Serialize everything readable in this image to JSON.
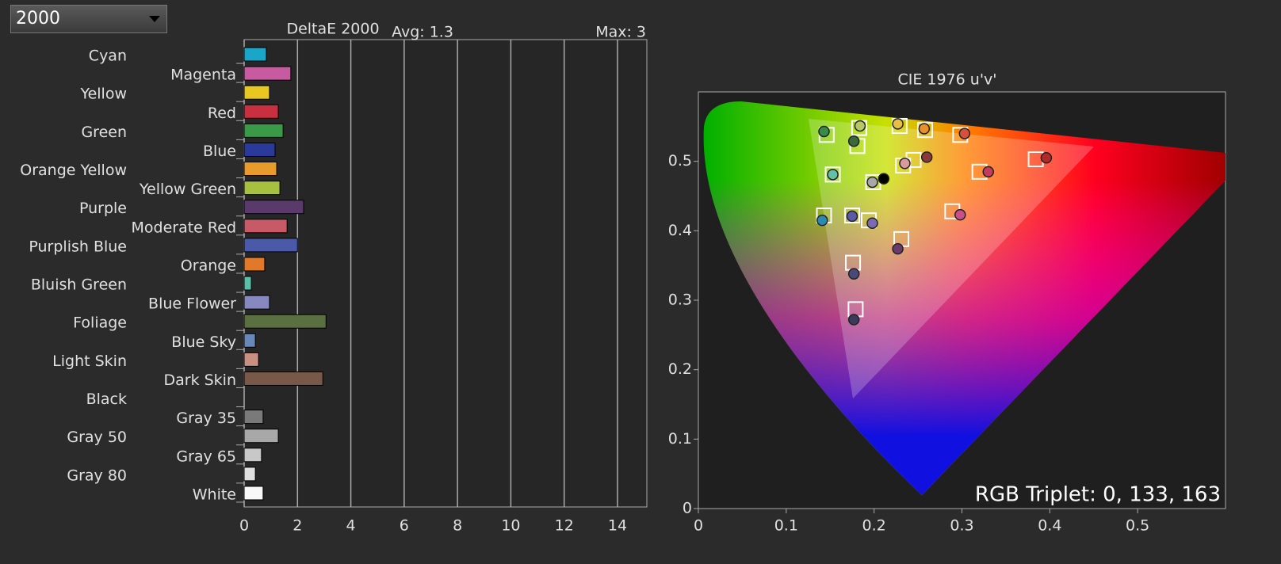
{
  "selector": {
    "value": "2000"
  },
  "chart_data": [
    {
      "type": "bar",
      "orientation": "horizontal",
      "title": "DeltaE 2000",
      "annotations": [
        "Avg: 1.3",
        "Max: 3"
      ],
      "categories": [
        "Cyan",
        "Magenta",
        "Yellow",
        "Red",
        "Green",
        "Blue",
        "Orange Yellow",
        "Yellow Green",
        "Purple",
        "Moderate Red",
        "Purplish Blue",
        "Orange",
        "Bluish Green",
        "Blue Flower",
        "Foliage",
        "Blue Sky",
        "Light Skin",
        "Dark Skin",
        "Black",
        "Gray 35",
        "Gray 50",
        "Gray 65",
        "Gray 80",
        "White"
      ],
      "values": [
        0.83,
        1.75,
        0.95,
        1.28,
        1.46,
        1.16,
        1.22,
        1.34,
        2.23,
        1.61,
        2.0,
        0.77,
        0.27,
        0.95,
        3.07,
        0.42,
        0.54,
        2.95,
        0,
        0.71,
        1.28,
        0.65,
        0.42,
        0.71
      ],
      "colors": [
        "#1aa6c8",
        "#c85aa0",
        "#e8c820",
        "#c83040",
        "#3a9a48",
        "#2a3a9a",
        "#e89a2a",
        "#a8c040",
        "#5a3a6a",
        "#c85a68",
        "#4a5aa8",
        "#e07a2a",
        "#5ac0a8",
        "#8888c0",
        "#5a7040",
        "#6888b8",
        "#c89080",
        "#785848",
        "#202020",
        "#7a7a7a",
        "#a8a8a8",
        "#c8c8c8",
        "#e0e0e0",
        "#f8f8f8"
      ],
      "xlim": [
        0,
        15.1
      ],
      "xticks": [
        0,
        2,
        4,
        6,
        8,
        10,
        12,
        14
      ],
      "grid": true
    },
    {
      "type": "scatter",
      "title": "CIE 1976 u'v'",
      "annotations": [
        "RGB Triplet: 0, 133, 163"
      ],
      "xlim": [
        0,
        0.6
      ],
      "ylim": [
        0,
        0.6
      ],
      "xticks": [
        0,
        0.1,
        0.2,
        0.3,
        0.4,
        0.5
      ],
      "yticks": [
        0,
        0.1,
        0.2,
        0.3,
        0.4,
        0.5
      ],
      "series": [
        {
          "marker": "square",
          "color": "#ffffff",
          "x": [
            0.146,
            0.183,
            0.229,
            0.258,
            0.298,
            0.181,
            0.245,
            0.233,
            0.384,
            0.32,
            0.153,
            0.199,
            0.143,
            0.175,
            0.194,
            0.289,
            0.231,
            0.176,
            0.179
          ],
          "y": [
            0.538,
            0.548,
            0.551,
            0.545,
            0.538,
            0.522,
            0.502,
            0.494,
            0.503,
            0.485,
            0.481,
            0.47,
            0.422,
            0.422,
            0.415,
            0.428,
            0.388,
            0.354,
            0.287
          ]
        },
        {
          "marker": "circle",
          "x": [
            0.143,
            0.184,
            0.227,
            0.257,
            0.303,
            0.177,
            0.26,
            0.235,
            0.396,
            0.33,
            0.153,
            0.198,
            0.211,
            0.141,
            0.175,
            0.198,
            0.298,
            0.227,
            0.177,
            0.177
          ],
          "y": [
            0.543,
            0.551,
            0.554,
            0.547,
            0.54,
            0.529,
            0.506,
            0.497,
            0.505,
            0.485,
            0.481,
            0.47,
            0.475,
            0.415,
            0.421,
            0.411,
            0.423,
            0.374,
            0.338,
            0.272
          ],
          "colors": [
            "#3a8a4a",
            "#b8c860",
            "#e8c040",
            "#e8902a",
            "#d8503a",
            "#3a6a3a",
            "#8a3a3a",
            "#d89a9a",
            "#b02a2a",
            "#c83a5a",
            "#60c0a8",
            "#a8a8a8",
            "#000000",
            "#2a8ab0",
            "#5a5aa8",
            "#7a6ab0",
            "#c8508a",
            "#6a3a6a",
            "#4a4a7a",
            "#3a3a5a"
          ]
        }
      ]
    }
  ]
}
